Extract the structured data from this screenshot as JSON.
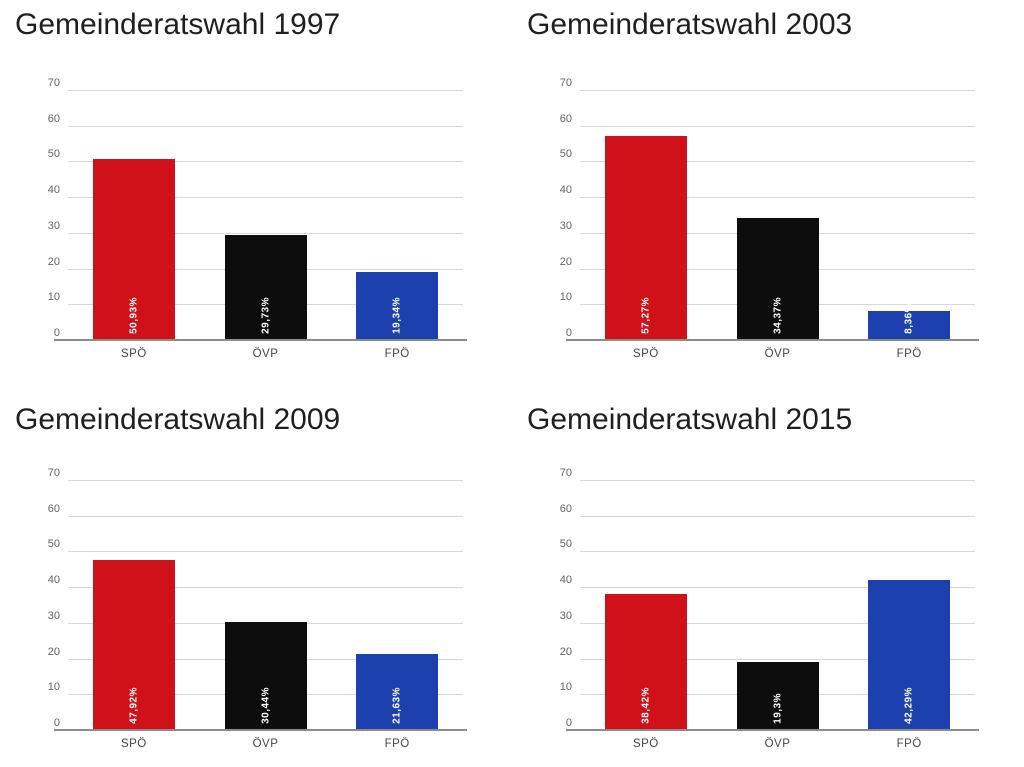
{
  "page": {
    "background": "#ffffff"
  },
  "style": {
    "title_color": "#1f1f1f",
    "grid_color": "#d8d8d8",
    "baseline_color": "#8c8c8c",
    "tick_text_color": "#636363",
    "category_text_color": "#454545",
    "value_label_color": "#ffffff",
    "party_colors": {
      "SPO": "#d01119",
      "OVP": "#0d0d0d",
      "FPO": "#1c41ae"
    }
  },
  "chart_data": [
    {
      "type": "bar",
      "title": "Gemeinderatswahl 1997",
      "categories": [
        "SPÖ",
        "ÖVP",
        "FPÖ"
      ],
      "values": [
        50.93,
        29.73,
        19.34
      ],
      "value_labels": [
        "50,93%",
        "29,73%",
        "19,34%"
      ],
      "bar_colors": [
        "#d01119",
        "#0d0d0d",
        "#1c41ae"
      ],
      "ylim": [
        0,
        70
      ],
      "yticks": [
        0,
        10,
        20,
        30,
        40,
        50,
        60,
        70
      ],
      "grid": true,
      "legend": "none"
    },
    {
      "type": "bar",
      "title": "Gemeinderatswahl 2003",
      "categories": [
        "SPÖ",
        "ÖVP",
        "FPÖ"
      ],
      "values": [
        57.27,
        34.37,
        8.36
      ],
      "value_labels": [
        "57,27%",
        "34,37%",
        "8,36%"
      ],
      "bar_colors": [
        "#d01119",
        "#0d0d0d",
        "#1c41ae"
      ],
      "ylim": [
        0,
        70
      ],
      "yticks": [
        0,
        10,
        20,
        30,
        40,
        50,
        60,
        70
      ],
      "grid": true,
      "legend": "none"
    },
    {
      "type": "bar",
      "title": "Gemeinderatswahl 2009",
      "categories": [
        "SPÖ",
        "ÖVP",
        "FPÖ"
      ],
      "values": [
        47.92,
        30.44,
        21.63
      ],
      "value_labels": [
        "47,92%",
        "30,44%",
        "21,63%"
      ],
      "bar_colors": [
        "#d01119",
        "#0d0d0d",
        "#1c41ae"
      ],
      "ylim": [
        0,
        70
      ],
      "yticks": [
        0,
        10,
        20,
        30,
        40,
        50,
        60,
        70
      ],
      "grid": true,
      "legend": "none"
    },
    {
      "type": "bar",
      "title": "Gemeinderatswahl 2015",
      "categories": [
        "SPÖ",
        "ÖVP",
        "FPÖ"
      ],
      "values": [
        38.42,
        19.3,
        42.29
      ],
      "value_labels": [
        "38,42%",
        "19,3%",
        "42,29%"
      ],
      "bar_colors": [
        "#d01119",
        "#0d0d0d",
        "#1c41ae"
      ],
      "ylim": [
        0,
        70
      ],
      "yticks": [
        0,
        10,
        20,
        30,
        40,
        50,
        60,
        70
      ],
      "grid": true,
      "legend": "none"
    }
  ]
}
